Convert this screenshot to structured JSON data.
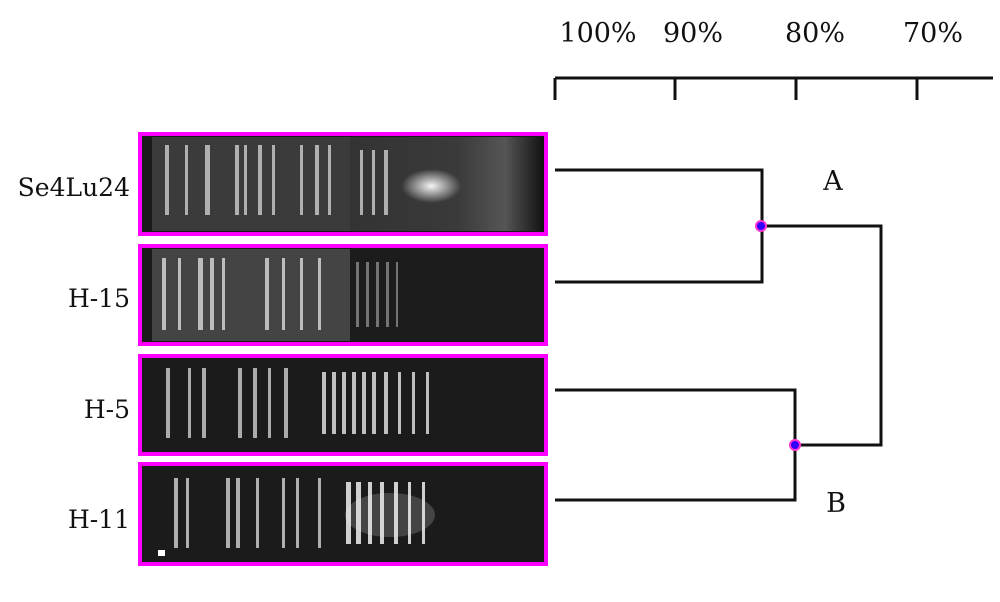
{
  "scale": {
    "ticks": [
      "100%",
      "90%",
      "80%",
      "70%"
    ]
  },
  "samples": [
    {
      "label": "Se4Lu24",
      "cluster": "A"
    },
    {
      "label": "H-15",
      "cluster": "A"
    },
    {
      "label": "H-5",
      "cluster": "B"
    },
    {
      "label": "H-11",
      "cluster": "B"
    }
  ],
  "clusters": [
    {
      "label": "A",
      "similarity": 83
    },
    {
      "label": "B",
      "similarity": 80
    }
  ],
  "root_similarity": 73,
  "colors": {
    "lane_border": "#ff00ff",
    "node_fill": "#3300ff",
    "node_stroke": "#ff33cc",
    "gel_background": "#1a1a1a"
  }
}
